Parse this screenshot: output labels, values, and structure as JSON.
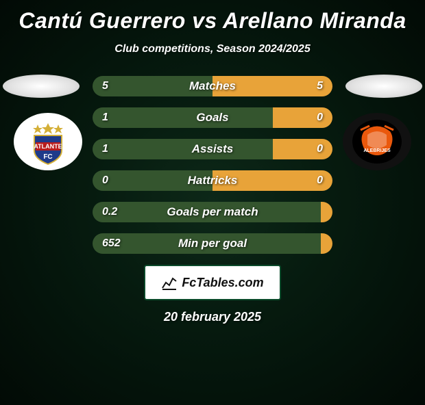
{
  "title": "Cantú Guerrero vs Arellano Miranda",
  "subtitle": "Club competitions, Season 2024/2025",
  "date": "20 february 2025",
  "branding": "FcTables.com",
  "colors": {
    "bar_left": "#34552e",
    "bar_right": "#e8a339",
    "background_inner": "#0d2818",
    "background_outer": "#020a05"
  },
  "club_left": {
    "name": "Atlante FC",
    "badge_colors": {
      "shield_top": "#1e3a8a",
      "shield_mid": "#b91c1c",
      "text": "#ffffff",
      "stars": "#d4af37"
    }
  },
  "club_right": {
    "name": "Alebrijes",
    "badge_colors": {
      "primary": "#ea580c",
      "secondary": "#000000",
      "accent": "#ffffff"
    }
  },
  "stats": [
    {
      "label": "Matches",
      "left_val": "5",
      "right_val": "5",
      "left_pct": 50,
      "right_pct": 50
    },
    {
      "label": "Goals",
      "left_val": "1",
      "right_val": "0",
      "left_pct": 75,
      "right_pct": 25
    },
    {
      "label": "Assists",
      "left_val": "1",
      "right_val": "0",
      "left_pct": 75,
      "right_pct": 25
    },
    {
      "label": "Hattricks",
      "left_val": "0",
      "right_val": "0",
      "left_pct": 50,
      "right_pct": 50
    },
    {
      "label": "Goals per match",
      "left_val": "0.2",
      "right_val": "",
      "left_pct": 95,
      "right_pct": 5
    },
    {
      "label": "Min per goal",
      "left_val": "652",
      "right_val": "",
      "left_pct": 95,
      "right_pct": 5
    }
  ]
}
